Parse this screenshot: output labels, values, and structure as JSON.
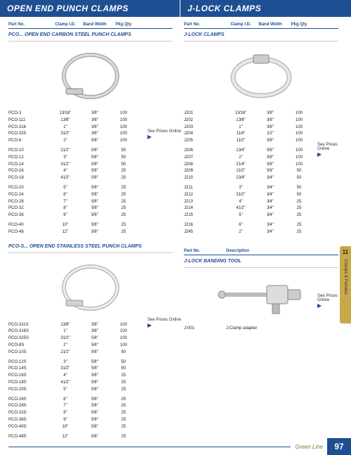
{
  "headers": {
    "left": "OPEN END PUNCH CLAMPS",
    "right": "J-LOCK CLAMPS"
  },
  "columns": {
    "c1": "Part No.",
    "c2": "Clamp I.D.",
    "c3": "Band Width",
    "c4": "Pkg Qty"
  },
  "pricesOnline": "See Prices Online",
  "greenline": "Green Line",
  "pageNum": "97",
  "sideTab": {
    "num": "11",
    "text": "Clamps & Ferrules"
  },
  "section1": {
    "title": "PCO... OPEN END CARBON STEEL PUNCH CLAMPS",
    "groups": [
      [
        {
          "p": "PCO-3",
          "id": "13⁄16\"",
          "bw": "3⁄8\"",
          "q": "100"
        },
        {
          "p": "PCO-111",
          "id": "13⁄8\"",
          "bw": "3⁄8\"",
          "q": "100"
        },
        {
          "p": "PCO-316",
          "id": "1\"",
          "bw": "3⁄8\"",
          "q": "100"
        },
        {
          "p": "PCO-325",
          "id": "31⁄2\"",
          "bw": "3⁄8\"",
          "q": "100"
        },
        {
          "p": "PCO-8",
          "id": "2\"",
          "bw": "5⁄8\"",
          "q": "100"
        }
      ],
      [
        {
          "p": "PCO-10",
          "id": "21⁄2\"",
          "bw": "5⁄8\"",
          "q": "50"
        },
        {
          "p": "PCO-12",
          "id": "3\"",
          "bw": "5⁄8\"",
          "q": "50"
        },
        {
          "p": "PCO-14",
          "id": "31⁄2\"",
          "bw": "5⁄8\"",
          "q": "50"
        },
        {
          "p": "PCO-16",
          "id": "4\"",
          "bw": "5⁄8\"",
          "q": "25"
        },
        {
          "p": "PCO-18",
          "id": "41⁄2\"",
          "bw": "5⁄8\"",
          "q": "25"
        }
      ],
      [
        {
          "p": "PCO-20",
          "id": "5\"",
          "bw": "5⁄8\"",
          "q": "25"
        },
        {
          "p": "PCO-24",
          "id": "6\"",
          "bw": "5⁄8\"",
          "q": "25"
        },
        {
          "p": "PCO-28",
          "id": "7\"",
          "bw": "5⁄8\"",
          "q": "25"
        },
        {
          "p": "PCO-32",
          "id": "8\"",
          "bw": "5⁄8\"",
          "q": "25"
        },
        {
          "p": "PCO-36",
          "id": "9\"",
          "bw": "5⁄8\"",
          "q": "25"
        }
      ],
      [
        {
          "p": "PCO-40",
          "id": "10\"",
          "bw": "5⁄8\"",
          "q": "25"
        },
        {
          "p": "PCO-48",
          "id": "12\"",
          "bw": "5⁄8\"",
          "q": "25"
        }
      ]
    ]
  },
  "section2": {
    "title": "PCO-S... OPEN END STAINLESS STEEL PUNCH CLAMPS",
    "groups": [
      [
        {
          "p": "PCO-311S",
          "id": "13⁄8\"",
          "bw": "3⁄8\"",
          "q": "100"
        },
        {
          "p": "PCO-316S",
          "id": "1\"",
          "bw": "3⁄8\"",
          "q": "100"
        },
        {
          "p": "PCO-325S",
          "id": "31⁄2\"",
          "bw": "5⁄8\"",
          "q": "100"
        },
        {
          "p": "PCO-8S",
          "id": "2\"",
          "bw": "5⁄8\"",
          "q": "100"
        },
        {
          "p": "PCO-10S",
          "id": "21⁄2\"",
          "bw": "5⁄8\"",
          "q": "50"
        }
      ],
      [
        {
          "p": "PCO-12S",
          "id": "3\"",
          "bw": "5⁄8\"",
          "q": "50"
        },
        {
          "p": "PCO-14S",
          "id": "31⁄2\"",
          "bw": "5⁄8\"",
          "q": "50"
        },
        {
          "p": "PCO-16S",
          "id": "4\"",
          "bw": "5⁄8\"",
          "q": "25"
        },
        {
          "p": "PCO-18S",
          "id": "41⁄2\"",
          "bw": "5⁄8\"",
          "q": "25"
        },
        {
          "p": "PCO-20S",
          "id": "5\"",
          "bw": "5⁄8\"",
          "q": "25"
        }
      ],
      [
        {
          "p": "PCO-24S",
          "id": "6\"",
          "bw": "5⁄8\"",
          "q": "25"
        },
        {
          "p": "PCO-28S",
          "id": "7\"",
          "bw": "5⁄8\"",
          "q": "25"
        },
        {
          "p": "PCO-32S",
          "id": "8\"",
          "bw": "5⁄8\"",
          "q": "25"
        },
        {
          "p": "PCO-36S",
          "id": "9\"",
          "bw": "5⁄8\"",
          "q": "25"
        },
        {
          "p": "PCO-40S",
          "id": "10\"",
          "bw": "5⁄8\"",
          "q": "25"
        }
      ],
      [
        {
          "p": "PCO-48S",
          "id": "12\"",
          "bw": "5⁄8\"",
          "q": "25"
        }
      ]
    ]
  },
  "jlock": {
    "title": "J-LOCK CLAMPS",
    "groups": [
      [
        {
          "p": "J201",
          "id": "13⁄16\"",
          "bw": "3⁄8\"",
          "q": "100"
        },
        {
          "p": "J202",
          "id": "13⁄8\"",
          "bw": "3⁄8\"",
          "q": "100"
        },
        {
          "p": "J203",
          "id": "1\"",
          "bw": "3⁄8\"",
          "q": "100"
        },
        {
          "p": "J204",
          "id": "11⁄4\"",
          "bw": "1⁄2\"",
          "q": "100"
        },
        {
          "p": "J205",
          "id": "11⁄2\"",
          "bw": "5⁄8\"",
          "q": "100"
        }
      ],
      [
        {
          "p": "J206",
          "id": "13⁄4\"",
          "bw": "5⁄8\"",
          "q": "100"
        },
        {
          "p": "J207",
          "id": "2\"",
          "bw": "5⁄8\"",
          "q": "100"
        },
        {
          "p": "J208",
          "id": "21⁄4\"",
          "bw": "5⁄8\"",
          "q": "100"
        },
        {
          "p": "J209",
          "id": "21⁄2\"",
          "bw": "5⁄8\"",
          "q": "50"
        },
        {
          "p": "J210",
          "id": "23⁄4\"",
          "bw": "3⁄4\"",
          "q": "50"
        }
      ],
      [
        {
          "p": "J211",
          "id": "3\"",
          "bw": "3⁄4\"",
          "q": "50"
        },
        {
          "p": "J212",
          "id": "31⁄2\"",
          "bw": "3⁄4\"",
          "q": "50"
        },
        {
          "p": "J213",
          "id": "4\"",
          "bw": "3⁄4\"",
          "q": "25"
        },
        {
          "p": "J214",
          "id": "41⁄2\"",
          "bw": "3⁄4\"",
          "q": "25"
        },
        {
          "p": "J215",
          "id": "5\"",
          "bw": "3⁄4\"",
          "q": "25"
        }
      ],
      [
        {
          "p": "J216",
          "id": "6\"",
          "bw": "3⁄4\"",
          "q": "25"
        },
        {
          "p": "J245",
          "id": "2\"",
          "bw": "3⁄4\"",
          "q": "25"
        }
      ]
    ]
  },
  "tool": {
    "headPart": "Part No.",
    "headDesc": "Description",
    "title": "J-LOCK BANDING TOOL",
    "row": {
      "p": "J-001",
      "d": "J-Clamp adapter"
    }
  }
}
